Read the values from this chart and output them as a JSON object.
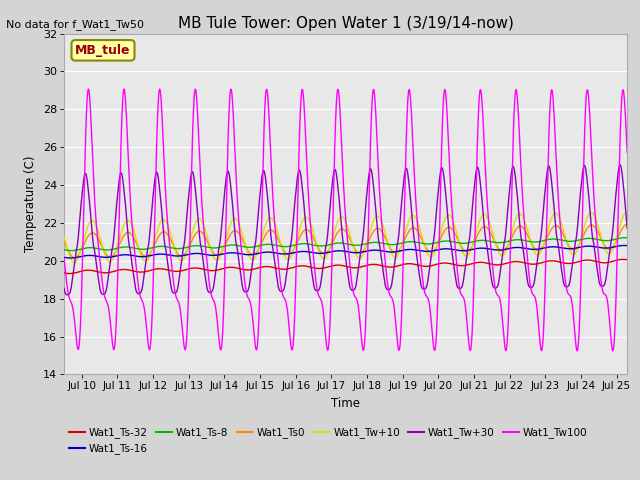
{
  "title": "MB Tule Tower: Open Water 1 (3/19/14-now)",
  "title_fontsize": 11,
  "xlabel": "Time",
  "ylabel": "Temperature (C)",
  "xlim_start": 9.5,
  "xlim_end": 25.3,
  "ylim": [
    14,
    32
  ],
  "yticks": [
    14,
    16,
    18,
    20,
    22,
    24,
    26,
    28,
    30,
    32
  ],
  "xtick_positions": [
    10,
    11,
    12,
    13,
    14,
    15,
    16,
    17,
    18,
    19,
    20,
    21,
    22,
    23,
    24,
    25
  ],
  "xtick_labels": [
    "Jul 10",
    "Jul 11",
    "Jul 12",
    "Jul 13",
    "Jul 14",
    "Jul 15",
    "Jul 16",
    "Jul 17",
    "Jul 18",
    "Jul 19",
    "Jul 20",
    "Jul 21",
    "Jul 22",
    "Jul 23",
    "Jul 24",
    "Jul 25"
  ],
  "no_data_text": "No data for f_Wat1_Tw50",
  "legend_label_text": "MB_tule",
  "fig_bg_color": "#d4d4d4",
  "plot_bg_color": "#e8e8e8",
  "series": [
    {
      "label": "Wat1_Ts-32",
      "color": "#dd0000"
    },
    {
      "label": "Wat1_Ts-16",
      "color": "#0000cc"
    },
    {
      "label": "Wat1_Ts-8",
      "color": "#00bb00"
    },
    {
      "label": "Wat1_Ts0",
      "color": "#ff8800"
    },
    {
      "label": "Wat1_Tw+10",
      "color": "#dddd00"
    },
    {
      "label": "Wat1_Tw+30",
      "color": "#8800bb"
    },
    {
      "label": "Wat1_Tw100",
      "color": "#ff00ff"
    }
  ]
}
